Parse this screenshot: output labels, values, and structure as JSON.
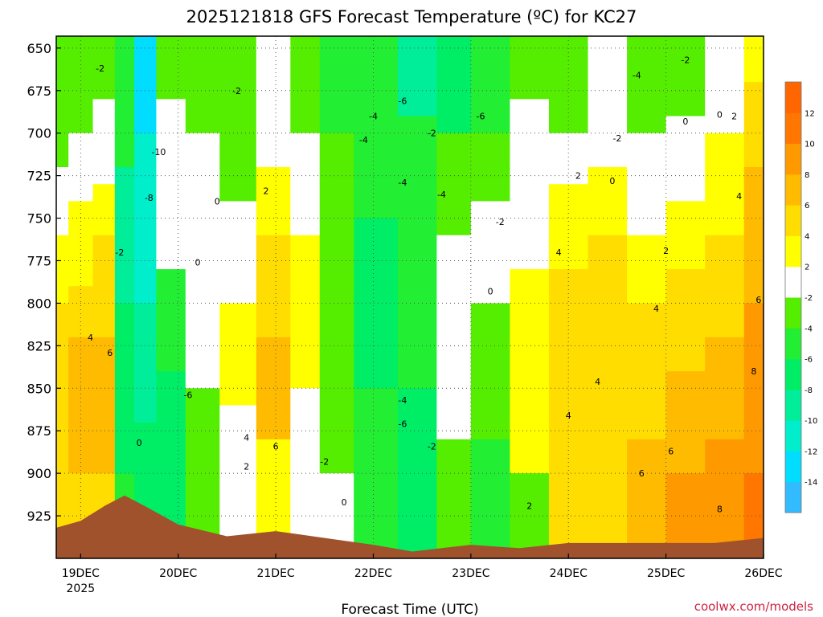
{
  "chart_data": {
    "type": "heatmap",
    "title": "2025121818 GFS Forecast Temperature (ºC) for KC27",
    "xlabel": "Forecast Time (UTC)",
    "ylabel": "",
    "x_ticks": [
      {
        "label": "19DEC",
        "sub": "2025",
        "day": 19.0
      },
      {
        "label": "20DEC",
        "sub": "",
        "day": 20.0
      },
      {
        "label": "21DEC",
        "sub": "",
        "day": 21.0
      },
      {
        "label": "22DEC",
        "sub": "",
        "day": 22.0
      },
      {
        "label": "23DEC",
        "sub": "",
        "day": 23.0
      },
      {
        "label": "24DEC",
        "sub": "",
        "day": 24.0
      },
      {
        "label": "25DEC",
        "sub": "",
        "day": 25.0
      },
      {
        "label": "26DEC",
        "sub": "",
        "day": 26.0
      }
    ],
    "xlim_day": [
      18.75,
      26.0
    ],
    "y_ticks": [
      650,
      675,
      700,
      725,
      750,
      775,
      800,
      825,
      850,
      875,
      900,
      925
    ],
    "ylim_hpa": [
      643,
      950
    ],
    "grid": true,
    "colorbar": {
      "placement": "right",
      "bins": [
        {
          "from": -16,
          "to": -14,
          "color": "#33bbff"
        },
        {
          "from": -14,
          "to": -12,
          "color": "#00ddff"
        },
        {
          "from": -12,
          "to": -10,
          "color": "#00eecc"
        },
        {
          "from": -10,
          "to": -8,
          "color": "#00ee99"
        },
        {
          "from": -8,
          "to": -6,
          "color": "#00ee66"
        },
        {
          "from": -6,
          "to": -4,
          "color": "#22ee33"
        },
        {
          "from": -4,
          "to": -2,
          "color": "#55ee00"
        },
        {
          "from": -2,
          "to": 2,
          "color": "#ffffff"
        },
        {
          "from": 2,
          "to": 4,
          "color": "#ffff00"
        },
        {
          "from": 4,
          "to": 6,
          "color": "#ffdd00"
        },
        {
          "from": 6,
          "to": 8,
          "color": "#ffbb00"
        },
        {
          "from": 8,
          "to": 10,
          "color": "#ff9900"
        },
        {
          "from": 10,
          "to": 12,
          "color": "#ff7700"
        },
        {
          "from": 12,
          "to": 14,
          "color": "#ff6600"
        }
      ],
      "labels": [
        "-14",
        "-12",
        "-10",
        "-8",
        "-6",
        "-4",
        "-2",
        "2",
        "4",
        "6",
        "8",
        "10",
        "12"
      ]
    },
    "terrain_color": "#a0522d",
    "terrain_surface_hpa": [
      {
        "day": 18.75,
        "p": 932
      },
      {
        "day": 19.0,
        "p": 928
      },
      {
        "day": 19.25,
        "p": 919
      },
      {
        "day": 19.45,
        "p": 913
      },
      {
        "day": 19.65,
        "p": 919
      },
      {
        "day": 20.0,
        "p": 930
      },
      {
        "day": 20.5,
        "p": 937
      },
      {
        "day": 21.0,
        "p": 934
      },
      {
        "day": 21.5,
        "p": 938
      },
      {
        "day": 22.0,
        "p": 942
      },
      {
        "day": 22.4,
        "p": 946
      },
      {
        "day": 22.7,
        "p": 944
      },
      {
        "day": 23.0,
        "p": 942
      },
      {
        "day": 23.5,
        "p": 944
      },
      {
        "day": 24.0,
        "p": 941
      },
      {
        "day": 24.5,
        "p": 941
      },
      {
        "day": 25.0,
        "p": 941
      },
      {
        "day": 25.5,
        "p": 941
      },
      {
        "day": 26.0,
        "p": 938
      }
    ],
    "columns": [
      {
        "day": 18.75,
        "bands": [
          {
            "p": 720,
            "t": -3
          },
          {
            "p": 760,
            "t": 1
          },
          {
            "p": 800,
            "t": 3
          },
          {
            "p": 960,
            "t": 5
          }
        ]
      },
      {
        "day": 19.0,
        "bands": [
          {
            "p": 700,
            "t": -3
          },
          {
            "p": 740,
            "t": 1
          },
          {
            "p": 790,
            "t": 3
          },
          {
            "p": 820,
            "t": 5
          },
          {
            "p": 900,
            "t": 7
          },
          {
            "p": 960,
            "t": 5
          }
        ]
      },
      {
        "day": 19.25,
        "bands": [
          {
            "p": 680,
            "t": -3
          },
          {
            "p": 730,
            "t": 1
          },
          {
            "p": 760,
            "t": 3
          },
          {
            "p": 820,
            "t": 5
          },
          {
            "p": 900,
            "t": 7
          },
          {
            "p": 960,
            "t": 5
          }
        ]
      },
      {
        "day": 19.45,
        "bands": [
          {
            "p": 720,
            "t": -5
          },
          {
            "p": 800,
            "t": -9
          },
          {
            "p": 900,
            "t": -7
          },
          {
            "p": 960,
            "t": -5
          }
        ]
      },
      {
        "day": 19.65,
        "bands": [
          {
            "p": 700,
            "t": -13
          },
          {
            "p": 800,
            "t": -11
          },
          {
            "p": 870,
            "t": -9
          },
          {
            "p": 960,
            "t": -7
          }
        ]
      },
      {
        "day": 19.9,
        "bands": [
          {
            "p": 680,
            "t": -3
          },
          {
            "p": 780,
            "t": 1
          },
          {
            "p": 840,
            "t": -5
          },
          {
            "p": 960,
            "t": -7
          }
        ]
      },
      {
        "day": 20.25,
        "bands": [
          {
            "p": 700,
            "t": -3
          },
          {
            "p": 850,
            "t": 1
          },
          {
            "p": 960,
            "t": -3
          }
        ]
      },
      {
        "day": 20.6,
        "bands": [
          {
            "p": 740,
            "t": -3
          },
          {
            "p": 800,
            "t": 1
          },
          {
            "p": 860,
            "t": 3
          },
          {
            "p": 960,
            "t": 1
          }
        ]
      },
      {
        "day": 21.0,
        "bands": [
          {
            "p": 720,
            "t": 1
          },
          {
            "p": 760,
            "t": 3
          },
          {
            "p": 820,
            "t": 5
          },
          {
            "p": 880,
            "t": 7
          },
          {
            "p": 960,
            "t": 3
          }
        ]
      },
      {
        "day": 21.3,
        "bands": [
          {
            "p": 700,
            "t": -3
          },
          {
            "p": 760,
            "t": 1
          },
          {
            "p": 850,
            "t": 3
          },
          {
            "p": 960,
            "t": 1
          }
        ]
      },
      {
        "day": 21.6,
        "bands": [
          {
            "p": 700,
            "t": -5
          },
          {
            "p": 800,
            "t": -3
          },
          {
            "p": 900,
            "t": -3
          },
          {
            "p": 960,
            "t": 1
          }
        ]
      },
      {
        "day": 22.0,
        "bands": [
          {
            "p": 690,
            "t": -5
          },
          {
            "p": 750,
            "t": -5
          },
          {
            "p": 850,
            "t": -7
          },
          {
            "p": 960,
            "t": -5
          }
        ]
      },
      {
        "day": 22.5,
        "bands": [
          {
            "p": 690,
            "t": -9
          },
          {
            "p": 740,
            "t": -5
          },
          {
            "p": 850,
            "t": -5
          },
          {
            "p": 960,
            "t": -7
          }
        ]
      },
      {
        "day": 22.8,
        "bands": [
          {
            "p": 700,
            "t": -7
          },
          {
            "p": 760,
            "t": -3
          },
          {
            "p": 820,
            "t": 1
          },
          {
            "p": 880,
            "t": 1
          },
          {
            "p": 960,
            "t": -3
          }
        ]
      },
      {
        "day": 23.2,
        "bands": [
          {
            "p": 700,
            "t": -5
          },
          {
            "p": 740,
            "t": -3
          },
          {
            "p": 800,
            "t": 1
          },
          {
            "p": 880,
            "t": -3
          },
          {
            "p": 960,
            "t": -5
          }
        ]
      },
      {
        "day": 23.6,
        "bands": [
          {
            "p": 680,
            "t": -3
          },
          {
            "p": 720,
            "t": 1
          },
          {
            "p": 780,
            "t": 1
          },
          {
            "p": 850,
            "t": 3
          },
          {
            "p": 900,
            "t": 3
          },
          {
            "p": 960,
            "t": -3
          }
        ]
      },
      {
        "day": 24.0,
        "bands": [
          {
            "p": 700,
            "t": -3
          },
          {
            "p": 730,
            "t": 1
          },
          {
            "p": 780,
            "t": 3
          },
          {
            "p": 900,
            "t": 5
          },
          {
            "p": 960,
            "t": 5
          }
        ]
      },
      {
        "day": 24.4,
        "bands": [
          {
            "p": 720,
            "t": 1
          },
          {
            "p": 760,
            "t": 3
          },
          {
            "p": 820,
            "t": 5
          },
          {
            "p": 960,
            "t": 5
          }
        ]
      },
      {
        "day": 24.8,
        "bands": [
          {
            "p": 700,
            "t": -3
          },
          {
            "p": 760,
            "t": 1
          },
          {
            "p": 800,
            "t": 3
          },
          {
            "p": 880,
            "t": 5
          },
          {
            "p": 960,
            "t": 7
          }
        ]
      },
      {
        "day": 25.2,
        "bands": [
          {
            "p": 690,
            "t": -3
          },
          {
            "p": 740,
            "t": 1
          },
          {
            "p": 780,
            "t": 3
          },
          {
            "p": 840,
            "t": 5
          },
          {
            "p": 900,
            "t": 7
          },
          {
            "p": 960,
            "t": 9
          }
        ]
      },
      {
        "day": 25.6,
        "bands": [
          {
            "p": 700,
            "t": 1
          },
          {
            "p": 760,
            "t": 3
          },
          {
            "p": 820,
            "t": 5
          },
          {
            "p": 880,
            "t": 7
          },
          {
            "p": 960,
            "t": 9
          }
        ]
      },
      {
        "day": 26.0,
        "bands": [
          {
            "p": 670,
            "t": 3
          },
          {
            "p": 720,
            "t": 5
          },
          {
            "p": 800,
            "t": 7
          },
          {
            "p": 900,
            "t": 9
          },
          {
            "p": 960,
            "t": 11
          }
        ]
      }
    ],
    "contour_labels": [
      {
        "text": "-2",
        "day": 19.2,
        "p": 662
      },
      {
        "text": "-2",
        "day": 20.6,
        "p": 675
      },
      {
        "text": "-2",
        "day": 22.6,
        "p": 700
      },
      {
        "text": "-2",
        "day": 24.5,
        "p": 703
      },
      {
        "text": "-2",
        "day": 25.2,
        "p": 657
      },
      {
        "text": "-2",
        "day": 23.3,
        "p": 752
      },
      {
        "text": "-2",
        "day": 19.4,
        "p": 770
      },
      {
        "text": "-2",
        "day": 21.5,
        "p": 893
      },
      {
        "text": "-2",
        "day": 22.6,
        "p": 884
      },
      {
        "text": "-4",
        "day": 22.0,
        "p": 690
      },
      {
        "text": "-4",
        "day": 21.9,
        "p": 704
      },
      {
        "text": "-4",
        "day": 22.3,
        "p": 729
      },
      {
        "text": "-4",
        "day": 22.7,
        "p": 736
      },
      {
        "text": "-4",
        "day": 22.3,
        "p": 857
      },
      {
        "text": "-4",
        "day": 24.7,
        "p": 666
      },
      {
        "text": "-6",
        "day": 22.3,
        "p": 681
      },
      {
        "text": "-6",
        "day": 23.1,
        "p": 690
      },
      {
        "text": "-6",
        "day": 22.3,
        "p": 871
      },
      {
        "text": "-6",
        "day": 20.1,
        "p": 854
      },
      {
        "text": "-8",
        "day": 19.7,
        "p": 738
      },
      {
        "text": "-10",
        "day": 19.8,
        "p": 711
      },
      {
        "text": "0",
        "day": 20.4,
        "p": 740
      },
      {
        "text": "0",
        "day": 20.2,
        "p": 776
      },
      {
        "text": "0",
        "day": 19.6,
        "p": 882
      },
      {
        "text": "0",
        "day": 21.7,
        "p": 917
      },
      {
        "text": "0",
        "day": 23.2,
        "p": 793
      },
      {
        "text": "0",
        "day": 24.45,
        "p": 728
      },
      {
        "text": "0",
        "day": 25.2,
        "p": 693
      },
      {
        "text": "0",
        "day": 25.55,
        "p": 689
      },
      {
        "text": "2",
        "day": 20.9,
        "p": 734
      },
      {
        "text": "2",
        "day": 24.1,
        "p": 725
      },
      {
        "text": "2",
        "day": 25.0,
        "p": 769
      },
      {
        "text": "2",
        "day": 25.7,
        "p": 690
      },
      {
        "text": "2",
        "day": 20.7,
        "p": 896
      },
      {
        "text": "2",
        "day": 23.6,
        "p": 919
      },
      {
        "text": "4",
        "day": 19.1,
        "p": 820
      },
      {
        "text": "4",
        "day": 20.7,
        "p": 879
      },
      {
        "text": "4",
        "day": 23.9,
        "p": 770
      },
      {
        "text": "4",
        "day": 24.3,
        "p": 846
      },
      {
        "text": "4",
        "day": 24.0,
        "p": 866
      },
      {
        "text": "4",
        "day": 24.9,
        "p": 803
      },
      {
        "text": "4",
        "day": 25.75,
        "p": 737
      },
      {
        "text": "6",
        "day": 19.3,
        "p": 829
      },
      {
        "text": "6",
        "day": 21.0,
        "p": 884
      },
      {
        "text": "6",
        "day": 24.75,
        "p": 900
      },
      {
        "text": "6",
        "day": 25.05,
        "p": 887
      },
      {
        "text": "6",
        "day": 25.95,
        "p": 798
      },
      {
        "text": "8",
        "day": 25.9,
        "p": 840
      },
      {
        "text": "8",
        "day": 25.55,
        "p": 921
      }
    ]
  },
  "credit": "coolwx.com/models"
}
